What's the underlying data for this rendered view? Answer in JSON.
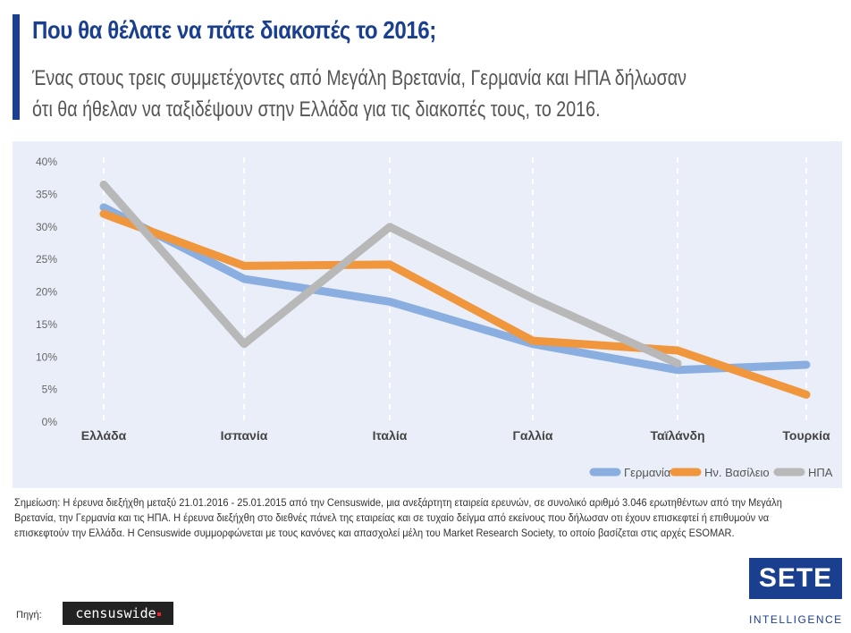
{
  "header": {
    "title": "Που θα θέλατε να πάτε διακοπές το 2016;",
    "subtitle_line1": "Ένας στους τρεις συμμετέχοντες από Μεγάλη Βρετανία, Γερμανία και ΗΠΑ δήλωσαν",
    "subtitle_line2": "ότι θα ήθελαν να ταξιδέψουν στην Ελλάδα για τις διακοπές τους, το 2016."
  },
  "chart_data": {
    "type": "line",
    "categories": [
      "Ελλάδα",
      "Ισπανία",
      "Ιταλία",
      "Γαλλία",
      "Ταϊλάνδη",
      "Τουρκία"
    ],
    "y_ticks": [
      "0%",
      "5%",
      "10%",
      "15%",
      "20%",
      "25%",
      "30%",
      "35%",
      "40%"
    ],
    "ylim": [
      0,
      40
    ],
    "grid": "vertical dashed",
    "legend_position": "bottom-right",
    "series": [
      {
        "name": "Γερμανία",
        "color": "#8aaee0",
        "values": [
          33,
          22,
          18.5,
          12,
          8,
          8.8
        ]
      },
      {
        "name": "Ην. Βασίλειο",
        "color": "#f0963c",
        "values": [
          32,
          24,
          24.2,
          12.5,
          11,
          4.2
        ]
      },
      {
        "name": "ΗΠΑ",
        "color": "#b8b8b8",
        "values": [
          36.5,
          12,
          30,
          19,
          9,
          null
        ]
      }
    ]
  },
  "note": {
    "line1": "Σημείωση: Η έρευνα διεξήχθη μεταξύ 21.01.2016 - 25.01.2015 από την Censuswide, μια ανεξάρτητη εταιρεία ερευνών, σε συνολικό αριθμό 3.046 ερωτηθέντων από την Μεγάλη",
    "line2": "Βρετανία, την Γερμανία και τις ΗΠΑ. Η έρευνα διεξήχθη στο διεθνές πάνελ της εταιρείας και σε τυχαίο δείγμα από εκείνους που δήλωσαν οτι έχουν επισκεφτεί ή επιθυμούν να",
    "line3": "επισκεφτούν την Ελλάδα. Η Censuswide συμμορφώνεται με τους κανόνες και απασχολεί μέλη του Market Research Society, το οποίο βασίζεται στις αρχές ESOMAR."
  },
  "footer": {
    "source_label": "Πηγή:",
    "source_logo": "censuswide",
    "brand_logo": "SETE",
    "brand_subtitle": "INTELLIGENCE"
  }
}
